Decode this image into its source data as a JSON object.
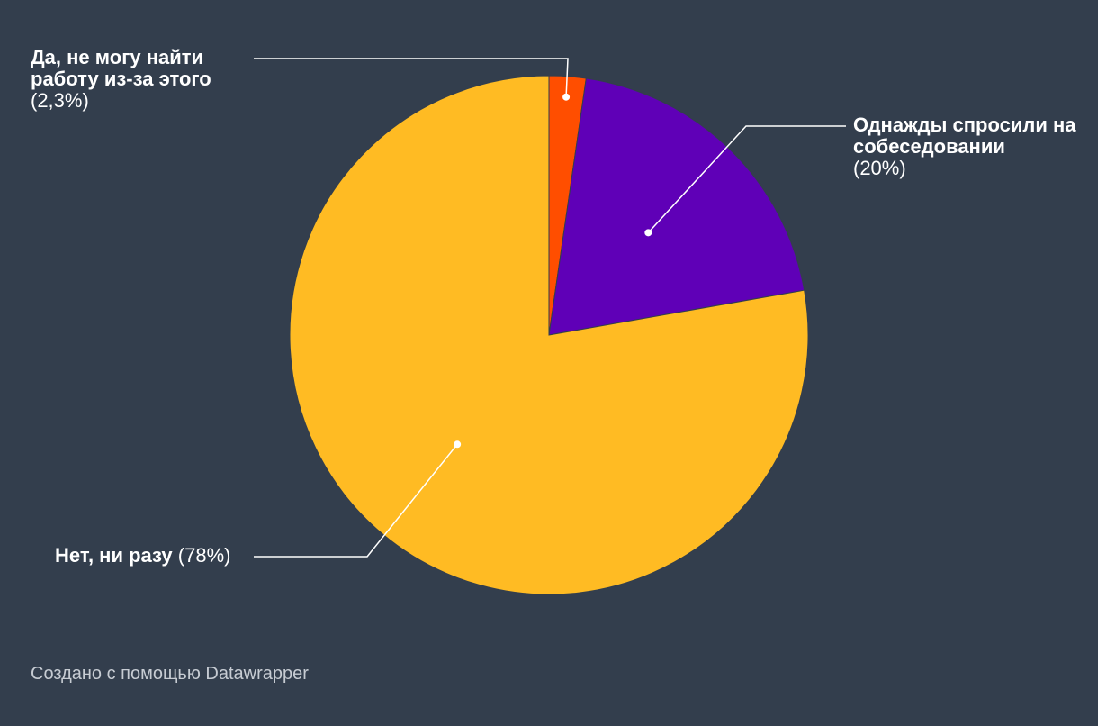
{
  "chart_data": {
    "type": "pie",
    "slices": [
      {
        "label": "Да, не могу найти работу из-за этого",
        "value": 2.3,
        "value_label": "(2,3%)",
        "color": "#ff4e00"
      },
      {
        "label": "Однажды спросили на собеседовании",
        "value": 20,
        "value_label": "(20%)",
        "color": "#5f00b7"
      },
      {
        "label": "Нет, ни разу",
        "value": 78,
        "value_label": "(78%)",
        "color": "#ffbb23"
      }
    ],
    "start_angle": "top",
    "direction": "clockwise",
    "labels": "outside with leader lines"
  },
  "colors": {
    "background": "#333e4d",
    "leader_line": "#ffffff",
    "text": "#ffffff",
    "credit_text": "#c7ccd3"
  },
  "credit": "Создано с помощью Datawrapper"
}
